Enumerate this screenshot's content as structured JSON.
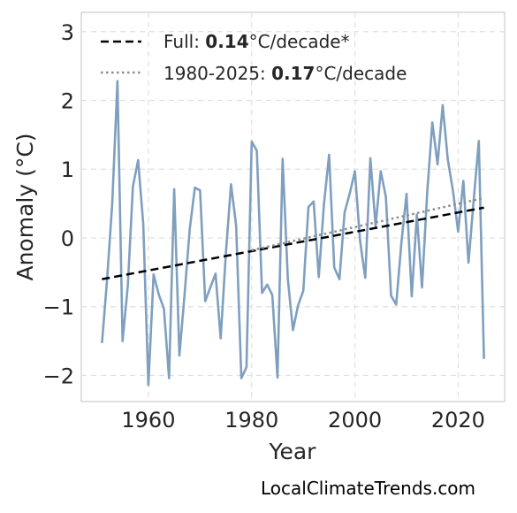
{
  "chart_data": {
    "type": "line",
    "xlabel": "Year",
    "ylabel": "Anomaly (°C)",
    "xlim": [
      1947,
      2029
    ],
    "ylim": [
      -2.38,
      3.28
    ],
    "xticks": [
      1960,
      1980,
      2000,
      2020
    ],
    "yticks": [
      -2,
      -1,
      0,
      1,
      2,
      3
    ],
    "ytick_labels": [
      "−2",
      "−1",
      "0",
      "1",
      "2",
      "3"
    ],
    "grid": true,
    "legend_position": "top-left",
    "colors": {
      "anomaly": "#7f9fbf",
      "full_trend": "#000000",
      "recent_trend": "#8c8c8c"
    },
    "series": [
      {
        "x": [
          1951,
          1952,
          1953,
          1954,
          1955,
          1956,
          1957,
          1958,
          1959,
          1960,
          1961,
          1962,
          1963,
          1964,
          1965,
          1966,
          1967,
          1968,
          1969,
          1970,
          1971,
          1972,
          1973,
          1974,
          1975,
          1976,
          1977,
          1978,
          1979,
          1980,
          1981,
          1982,
          1983,
          1984,
          1985,
          1986,
          1987,
          1988,
          1989,
          1990,
          1991,
          1992,
          1993,
          1994,
          1995,
          1996,
          1997,
          1998,
          1999,
          2000,
          2001,
          2002,
          2003,
          2004,
          2005,
          2006,
          2007,
          2008,
          2009,
          2010,
          2011,
          2012,
          2013,
          2014,
          2015,
          2016,
          2017,
          2018,
          2019,
          2020,
          2021,
          2022,
          2023,
          2024,
          2025
        ],
        "values": [
          -1.53,
          -0.6,
          0.5,
          2.28,
          -1.5,
          -0.7,
          0.75,
          1.13,
          0.2,
          -2.14,
          -0.53,
          -0.82,
          -1.03,
          -2.04,
          0.71,
          -1.71,
          -0.83,
          0.13,
          0.73,
          0.69,
          -0.92,
          -0.72,
          -0.52,
          -1.46,
          -0.22,
          0.78,
          0.18,
          -2.04,
          -1.88,
          1.4,
          1.27,
          -0.8,
          -0.68,
          -0.83,
          -2.03,
          1.15,
          -0.6,
          -1.34,
          -0.98,
          -0.77,
          0.45,
          0.53,
          -0.57,
          0.48,
          1.21,
          -0.43,
          -0.6,
          0.37,
          0.65,
          0.97,
          -0.04,
          -0.58,
          1.16,
          0.17,
          0.97,
          0.6,
          -0.84,
          -0.97,
          -0.07,
          0.64,
          -0.85,
          0.34,
          -0.72,
          0.66,
          1.68,
          1.07,
          1.93,
          1.14,
          0.68,
          0.09,
          0.83,
          -0.36,
          0.55,
          1.41,
          -1.76
        ]
      },
      {
        "name": "Full: 0.14°C/decade*",
        "x": [
          1951,
          2025
        ],
        "values": [
          -0.6,
          0.44
        ]
      },
      {
        "name": "1980-2025: 0.17°C/decade",
        "x": [
          1980,
          2025
        ],
        "values": [
          -0.18,
          0.58
        ]
      }
    ]
  },
  "legend": [
    {
      "prefix": "Full: ",
      "rate": "0.14",
      "suffix": "°C/decade*"
    },
    {
      "prefix": "1980-2025: ",
      "rate": "0.17",
      "suffix": "°C/decade"
    }
  ],
  "credit": "LocalClimateTrends.com"
}
